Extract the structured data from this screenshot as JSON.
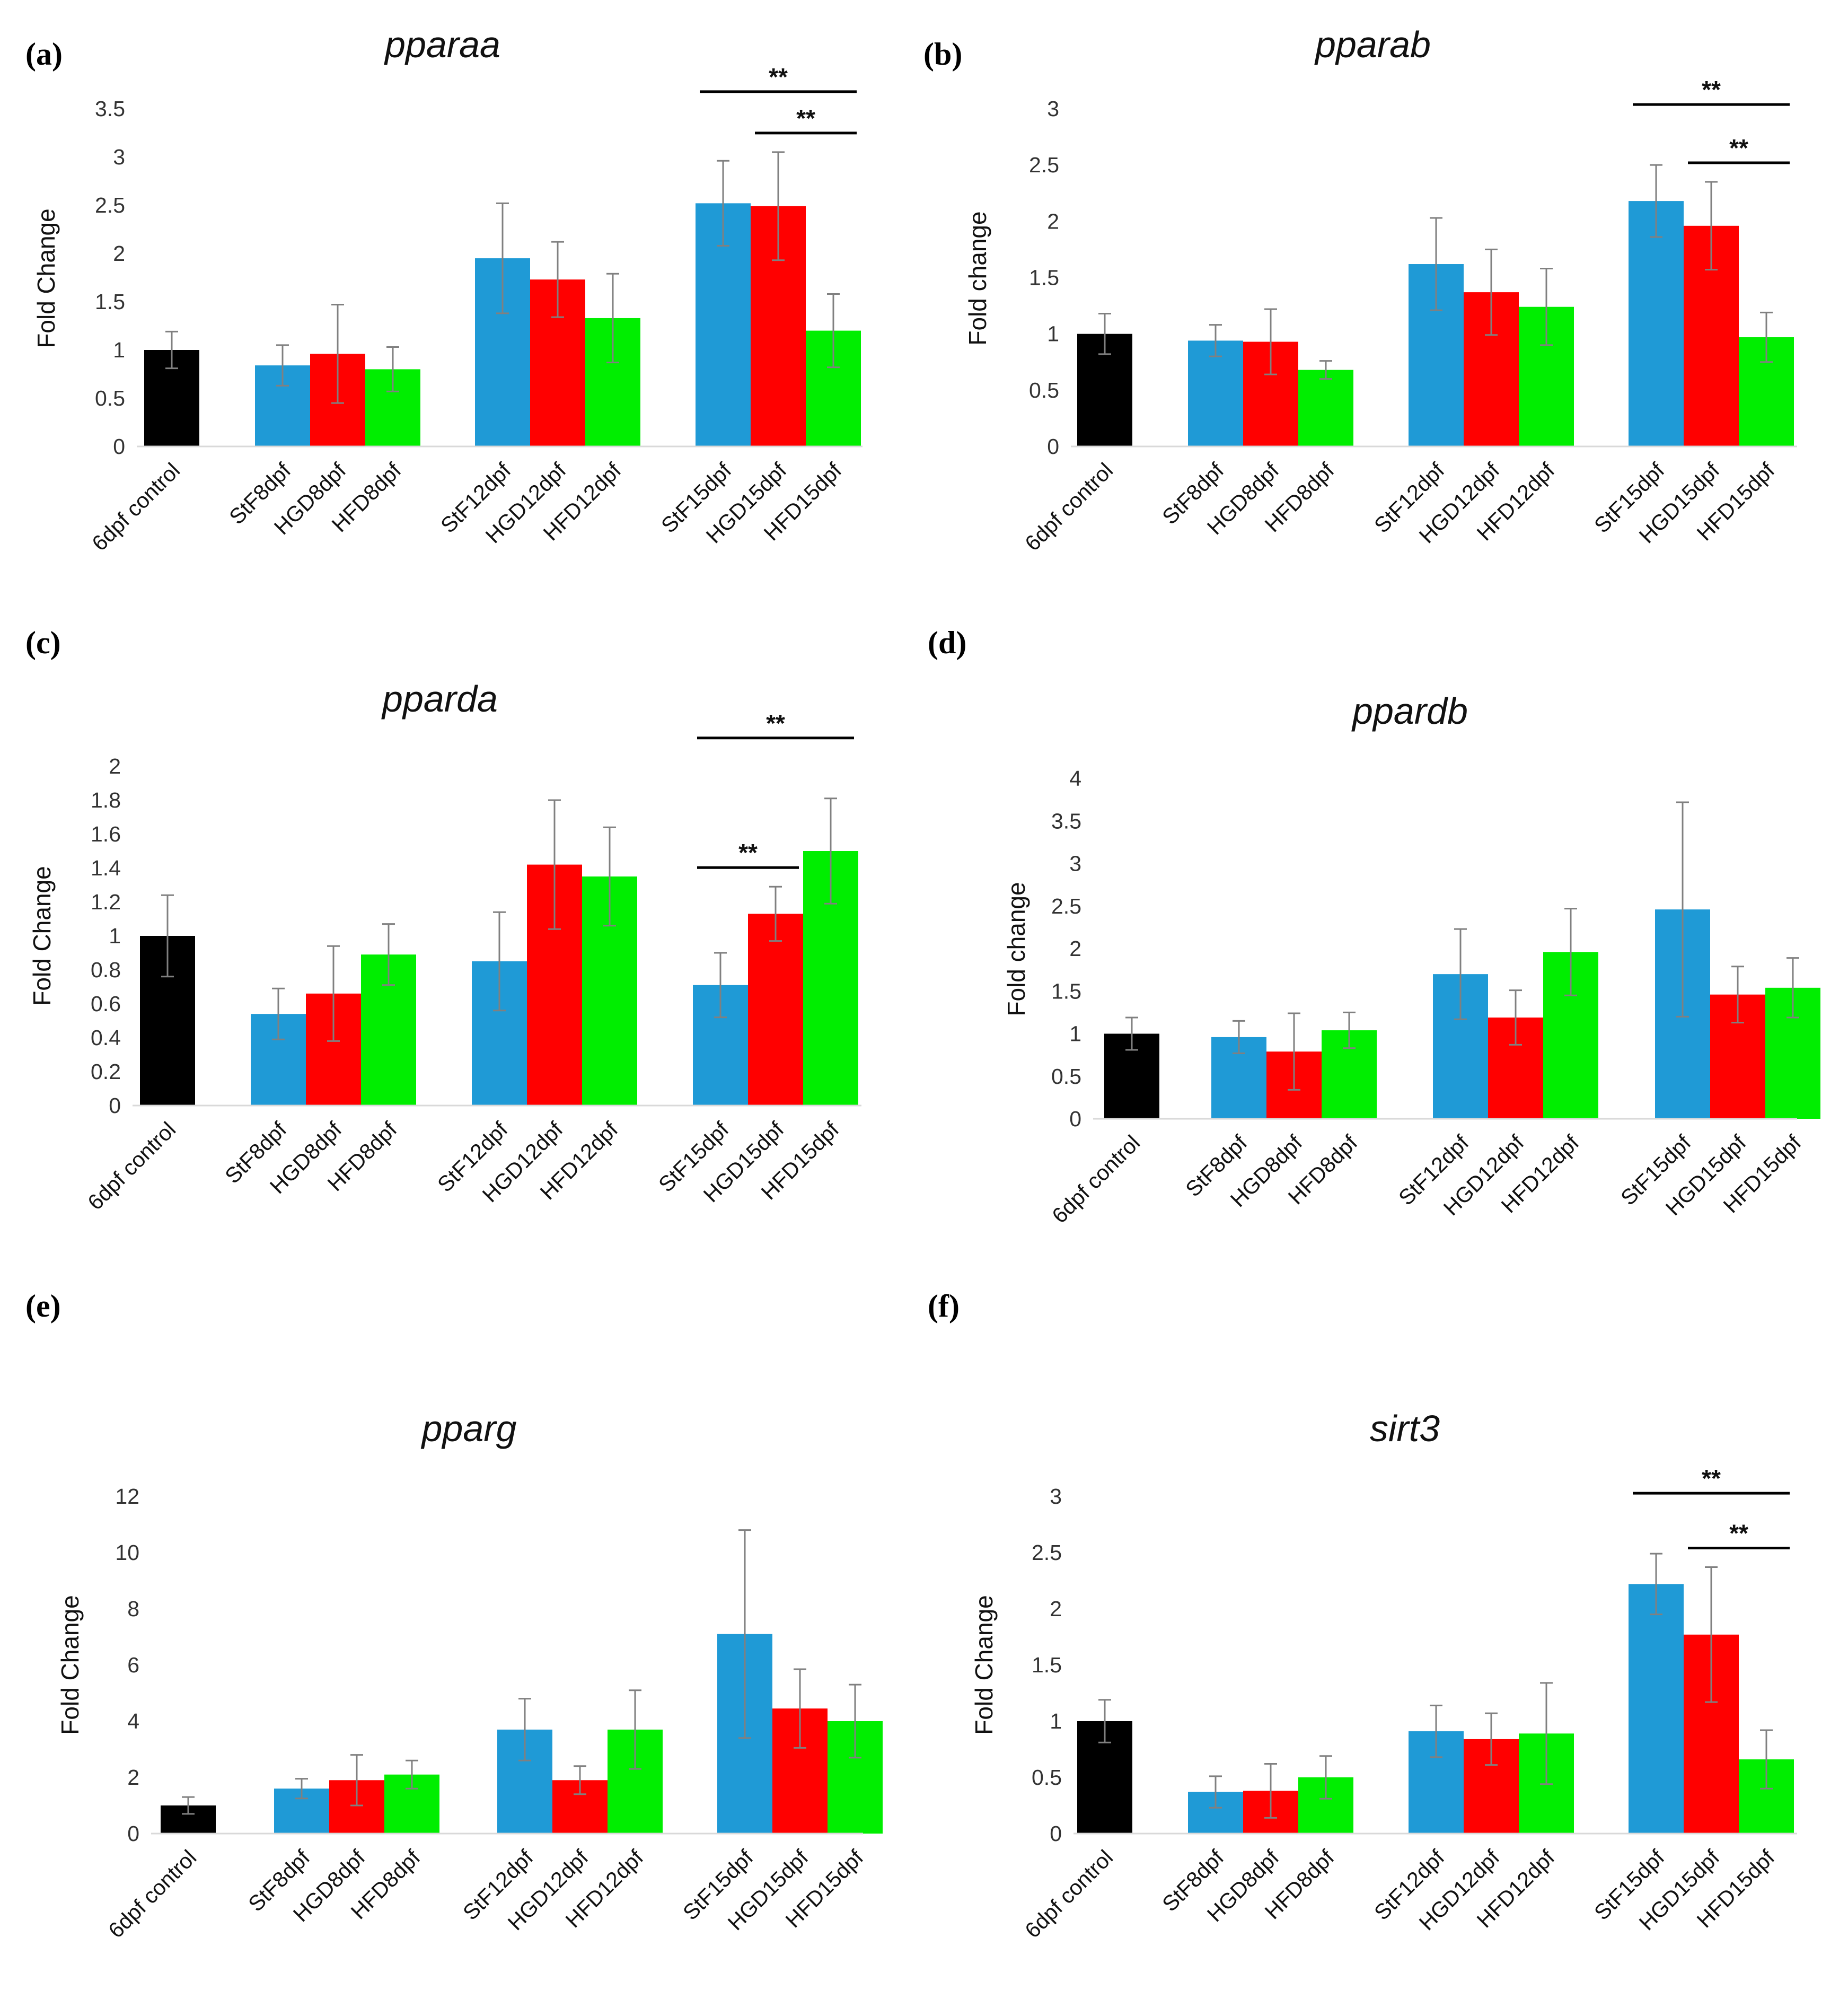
{
  "figure": {
    "panel_count": 6
  },
  "colors": {
    "control": "#000000",
    "StF": "#1f9ad6",
    "HGD": "#ff0000",
    "HFD": "#00ee00",
    "axis": "#d9d9d9",
    "error_bar": "#808080",
    "significance_line": "#000000"
  },
  "chart_data": [
    {
      "panel": "(a)",
      "title": "pparaa",
      "type": "bar",
      "ylabel": "Fold Change",
      "xlabel": "",
      "ylim": [
        0,
        3.5
      ],
      "yticks": [
        "0",
        "0.5",
        "1",
        "1.5",
        "2",
        "2.5",
        "3",
        "3.5"
      ],
      "categories": [
        "6dpf control",
        "StF8dpf",
        "HGD8dpf",
        "HFD8dpf",
        "StF12dpf",
        "HGD12dpf",
        "HFD12dpf",
        "StF15dpf",
        "HGD15dpf",
        "HFD15dpf"
      ],
      "groups": [
        "control",
        "StF",
        "HGD",
        "HFD",
        "StF",
        "HGD",
        "HFD",
        "StF",
        "HGD",
        "HFD"
      ],
      "values": [
        1.0,
        0.84,
        0.96,
        0.8,
        1.95,
        1.73,
        1.33,
        2.52,
        2.49,
        1.2
      ],
      "errors": [
        0.19,
        0.21,
        0.51,
        0.23,
        0.57,
        0.39,
        0.46,
        0.44,
        0.56,
        0.38
      ],
      "significance": [
        {
          "from": 7,
          "to": 9,
          "label": "**",
          "level": 1
        },
        {
          "from": 8,
          "to": 9,
          "label": "**",
          "level": 0
        }
      ]
    },
    {
      "panel": "(b)",
      "title": "pparab",
      "type": "bar",
      "ylabel": "Fold change",
      "xlabel": "",
      "ylim": [
        0,
        3
      ],
      "yticks": [
        "0",
        "0.5",
        "1",
        "1.5",
        "2",
        "2.5",
        "3"
      ],
      "categories": [
        "6dpf control",
        "StF8dpf",
        "HGD8dpf",
        "HFD8dpf",
        "StF12dpf",
        "HGD12dpf",
        "HFD12dpf",
        "StF15dpf",
        "HGD15dpf",
        "HFD15dpf"
      ],
      "groups": [
        "control",
        "StF",
        "HGD",
        "HFD",
        "StF",
        "HGD",
        "HFD",
        "StF",
        "HGD",
        "HFD"
      ],
      "values": [
        1.0,
        0.94,
        0.93,
        0.68,
        1.62,
        1.37,
        1.24,
        2.18,
        1.96,
        0.97
      ],
      "errors": [
        0.18,
        0.14,
        0.29,
        0.08,
        0.41,
        0.38,
        0.34,
        0.32,
        0.39,
        0.22
      ],
      "significance": [
        {
          "from": 7,
          "to": 9,
          "label": "**",
          "level": 1
        },
        {
          "from": 8,
          "to": 9,
          "label": "**",
          "level": 0
        }
      ]
    },
    {
      "panel": "(c)",
      "title": "pparda",
      "type": "bar",
      "ylabel": "Fold Change",
      "xlabel": "",
      "ylim": [
        0,
        2
      ],
      "yticks": [
        "0",
        "0.2",
        "0.4",
        "0.6",
        "0.8",
        "1",
        "1.2",
        "1.4",
        "1.6",
        "1.8",
        "2"
      ],
      "categories": [
        "6dpf control",
        "StF8dpf",
        "HGD8dpf",
        "HFD8dpf",
        "StF12dpf",
        "HGD12dpf",
        "HFD12dpf",
        "StF15dpf",
        "HGD15dpf",
        "HFD15dpf"
      ],
      "groups": [
        "control",
        "StF",
        "HGD",
        "HFD",
        "StF",
        "HGD",
        "HFD",
        "StF",
        "HGD",
        "HFD"
      ],
      "values": [
        1.0,
        0.54,
        0.66,
        0.89,
        0.85,
        1.42,
        1.35,
        0.71,
        1.13,
        1.5
      ],
      "errors": [
        0.24,
        0.15,
        0.28,
        0.18,
        0.29,
        0.38,
        0.29,
        0.19,
        0.16,
        0.31
      ],
      "significance": [
        {
          "from": 7,
          "to": 9,
          "label": "**",
          "level": 1
        },
        {
          "from": 7,
          "to": 8,
          "label": "**",
          "level": 0
        }
      ]
    },
    {
      "panel": "(d)",
      "title": "ppardb",
      "type": "bar",
      "ylabel": "Fold change",
      "xlabel": "",
      "ylim": [
        0,
        4
      ],
      "yticks": [
        "0",
        "0.5",
        "1",
        "1.5",
        "2",
        "2.5",
        "3",
        "3.5",
        "4"
      ],
      "categories": [
        "6dpf control",
        "StF8dpf",
        "HGD8dpf",
        "HFD8dpf",
        "StF12dpf",
        "HGD12dpf",
        "HFD12dpf",
        "StF15dpf",
        "HGD15dpf",
        "HFD15dpf"
      ],
      "groups": [
        "control",
        "StF",
        "HGD",
        "HFD",
        "StF",
        "HGD",
        "HFD",
        "StF",
        "HGD",
        "HFD"
      ],
      "values": [
        1.0,
        0.96,
        0.79,
        1.04,
        1.7,
        1.19,
        1.96,
        2.46,
        1.46,
        1.54
      ],
      "errors": [
        0.19,
        0.19,
        0.45,
        0.21,
        0.53,
        0.32,
        0.51,
        1.26,
        0.33,
        0.35
      ],
      "significance": []
    },
    {
      "panel": "(e)",
      "title": "pparg",
      "type": "bar",
      "ylabel": "Fold Change",
      "xlabel": "",
      "ylim": [
        0,
        12
      ],
      "yticks": [
        "0",
        "2",
        "4",
        "6",
        "8",
        "10",
        "12"
      ],
      "categories": [
        "6dpf control",
        "StF8dpf",
        "HGD8dpf",
        "HFD8dpf",
        "StF12dpf",
        "HGD12dpf",
        "HFD12dpf",
        "StF15dpf",
        "HGD15dpf",
        "HFD15dpf"
      ],
      "groups": [
        "control",
        "StF",
        "HGD",
        "HFD",
        "StF",
        "HGD",
        "HFD",
        "StF",
        "HGD",
        "HFD"
      ],
      "values": [
        1.0,
        1.6,
        1.9,
        2.1,
        3.7,
        1.9,
        3.7,
        7.1,
        4.45,
        4.0
      ],
      "errors": [
        0.3,
        0.35,
        0.9,
        0.5,
        1.1,
        0.5,
        1.4,
        3.7,
        1.4,
        1.3
      ],
      "significance": []
    },
    {
      "panel": "(f)",
      "title": "sirt3",
      "type": "bar",
      "ylabel": "Fold Change",
      "xlabel": "",
      "ylim": [
        0,
        3
      ],
      "yticks": [
        "0",
        "0.5",
        "1",
        "1.5",
        "2",
        "2.5",
        "3"
      ],
      "categories": [
        "6dpf control",
        "StF8dpf",
        "HGD8dpf",
        "HFD8dpf",
        "StF12dpf",
        "HGD12dpf",
        "HFD12dpf",
        "StF15dpf",
        "HGD15dpf",
        "HFD15dpf"
      ],
      "groups": [
        "control",
        "StF",
        "HGD",
        "HFD",
        "StF",
        "HGD",
        "HFD",
        "StF",
        "HGD",
        "HFD"
      ],
      "values": [
        1.0,
        0.37,
        0.38,
        0.5,
        0.91,
        0.84,
        0.89,
        2.22,
        1.77,
        0.66
      ],
      "errors": [
        0.19,
        0.14,
        0.24,
        0.19,
        0.23,
        0.23,
        0.45,
        0.27,
        0.6,
        0.26
      ],
      "significance": [
        {
          "from": 7,
          "to": 9,
          "label": "**",
          "level": 1
        },
        {
          "from": 8,
          "to": 9,
          "label": "**",
          "level": 0
        }
      ]
    }
  ]
}
